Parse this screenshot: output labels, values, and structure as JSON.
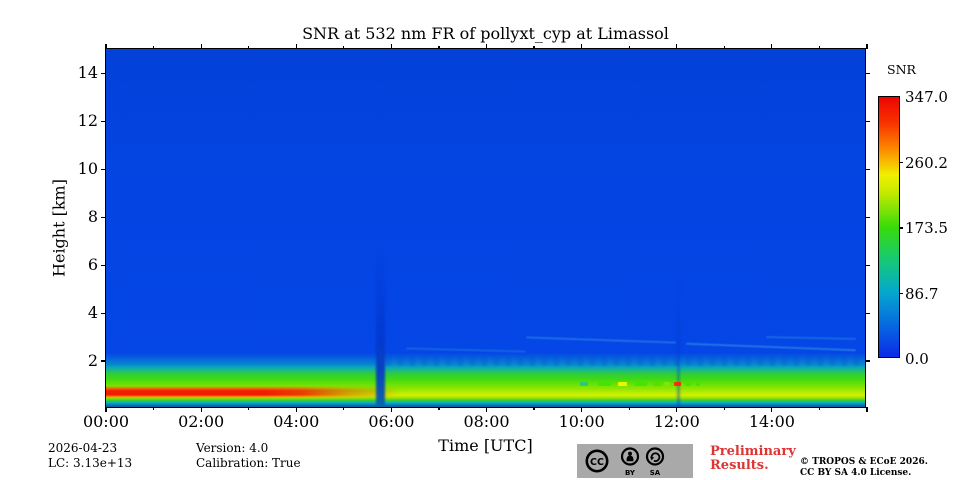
{
  "title": "SNR at 532 nm FR of pollyxt_cyp at Limassol",
  "colorbar": {
    "label": "SNR",
    "tick_labels": [
      "0.0",
      "86.7",
      "173.5",
      "260.2",
      "347.0"
    ],
    "tick_values": [
      0,
      86.7,
      173.5,
      260.2,
      347
    ]
  },
  "footer": {
    "date": "2026-04-23",
    "lc": "LC: 3.13e+13",
    "version": "Version: 4.0",
    "calibration": "Calibration: True",
    "preliminary_line1": "Preliminary",
    "preliminary_line2": "Results.",
    "copyright_line1": "© TROPOS & ECoE 2026.",
    "copyright_line2": "CC BY SA 4.0 License.",
    "cc_badge": {
      "cc": "CC",
      "by": "BY",
      "sa": "SA"
    }
  },
  "colors": {
    "snr_low_blue": "#0546e6",
    "snr_high_red": "#f21d00",
    "preliminary_red": "#df3434",
    "cc_badge_bg": "#a9a9a9"
  },
  "chart_data": {
    "type": "heatmap",
    "title": "SNR at 532 nm FR of pollyxt_cyp at Limassol",
    "xlabel": "Time [UTC]",
    "ylabel": "Height [km]",
    "x_range_hours": [
      0,
      16
    ],
    "x_major_tick_hours": [
      0,
      2,
      4,
      6,
      8,
      10,
      12,
      14
    ],
    "x_tick_labels": [
      "00:00",
      "02:00",
      "04:00",
      "06:00",
      "08:00",
      "10:00",
      "12:00",
      "14:00"
    ],
    "x_minor_tick_interval_hours": 1,
    "y_range_km": [
      0,
      15
    ],
    "y_major_ticks_km": [
      2,
      4,
      6,
      8,
      10,
      12,
      14
    ],
    "y_tick_labels": [
      "2",
      "4",
      "6",
      "8",
      "10",
      "12",
      "14"
    ],
    "grid": false,
    "colorbar": {
      "label": "SNR",
      "tick_values": [
        0,
        86.7,
        173.5,
        260.2,
        347
      ],
      "tick_labels": [
        "0.0",
        "86.7",
        "173.5",
        "260.2",
        "347.0"
      ],
      "colormap": "jet-like: blue → cyan → green → yellow → orange → red"
    },
    "specks": [
      {
        "time_h": 9.97,
        "height_km": 1.05,
        "w": 8,
        "color": "#2cc878"
      },
      {
        "time_h": 10.34,
        "height_km": 1.05,
        "w": 13,
        "color": "#44e408"
      },
      {
        "time_h": 10.76,
        "height_km": 1.05,
        "w": 9,
        "color": "#ecf400"
      },
      {
        "time_h": 11.12,
        "height_km": 1.05,
        "w": 12,
        "color": "#44e408"
      },
      {
        "time_h": 11.5,
        "height_km": 1.05,
        "w": 8,
        "color": "#55e000"
      },
      {
        "time_h": 11.73,
        "height_km": 1.05,
        "w": 6,
        "color": "#7de800"
      },
      {
        "time_h": 11.95,
        "height_km": 1.05,
        "w": 7,
        "color": "#f23000"
      },
      {
        "time_h": 12.17,
        "height_km": 1.05,
        "w": 6,
        "color": "#44e408"
      },
      {
        "time_h": 12.4,
        "height_km": 1.05,
        "w": 4,
        "color": "#44e408"
      }
    ],
    "features": [
      {
        "name": "background",
        "description": "Uniform low SNR (~0-20, bright blue) above ~1.5 km over the whole day"
      },
      {
        "name": "surface-high-snr-band",
        "description": "Very high SNR (red, ~300-347) below ~0.5 km from 00:00 until ~04:00, fading to orange/yellow by ~05:30"
      },
      {
        "name": "boundary-layer-band",
        "description": "Elevated SNR (green-yellow, ~90-200) below ~1.5 km across the full record"
      },
      {
        "name": "data-gap",
        "description": "Dark low-SNR vertical stripe at ~05:45 extending from the surface to several km"
      },
      {
        "name": "faint-gap",
        "description": "Faint low-SNR vertical line at ~12:05"
      },
      {
        "name": "speck-echoes",
        "description": "Small high-SNR patches near 1 km between ~10:00 and ~12:30, one red (~300+) at ~11:55"
      },
      {
        "name": "thin-layers",
        "description": "Faint cyan descending aerosol layers at 2-3 km in the afternoon (10:30-16:00)"
      }
    ]
  }
}
